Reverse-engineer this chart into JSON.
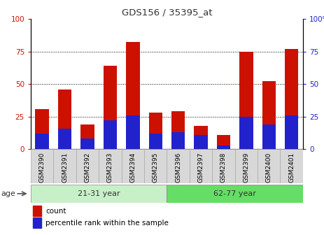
{
  "title": "GDS156 / 35395_at",
  "samples": [
    "GSM2390",
    "GSM2391",
    "GSM2392",
    "GSM2393",
    "GSM2394",
    "GSM2395",
    "GSM2396",
    "GSM2397",
    "GSM2398",
    "GSM2399",
    "GSM2400",
    "GSM2401"
  ],
  "count": [
    31,
    46,
    19,
    64,
    82,
    28,
    29,
    18,
    11,
    75,
    52,
    77
  ],
  "percentile": [
    12,
    16,
    8,
    22,
    26,
    12,
    13,
    11,
    3,
    25,
    19,
    26
  ],
  "groups": [
    {
      "label": "21-31 year",
      "start": 0,
      "end": 6
    },
    {
      "label": "62-77 year",
      "start": 6,
      "end": 12
    }
  ],
  "bar_color_red": "#cc1100",
  "bar_color_blue": "#2222cc",
  "ylim": [
    0,
    100
  ],
  "yticks": [
    0,
    25,
    50,
    75,
    100
  ],
  "ylabel_left_color": "#cc1100",
  "ylabel_right_color": "#2222cc",
  "age_label": "age",
  "legend_count": "count",
  "legend_percentile": "percentile rank within the sample",
  "title_color": "#333333",
  "light_green": "#c8f0c8",
  "mid_green": "#66dd66",
  "label_box_color": "#d8d8d8",
  "divider_color": "#888888"
}
